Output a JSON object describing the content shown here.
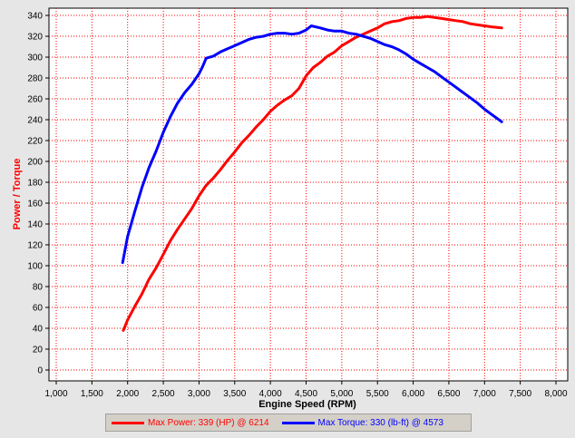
{
  "chart_data": {
    "type": "line",
    "xlabel": "Engine Speed (RPM)",
    "ylabel": "Power / Torque",
    "xlim": [
      1000,
      8000
    ],
    "ylim": [
      0,
      340
    ],
    "x_ticks": [
      1000,
      1500,
      2000,
      2500,
      3000,
      3500,
      4000,
      4500,
      5000,
      5500,
      6000,
      6500,
      7000,
      7500,
      8000
    ],
    "x_tick_labels": [
      "1,000",
      "1,500",
      "2,000",
      "2,500",
      "3,000",
      "3,500",
      "4,000",
      "4,500",
      "5,000",
      "5,500",
      "6,000",
      "6,500",
      "7,000",
      "7,500",
      "8,000"
    ],
    "y_ticks": [
      0,
      20,
      40,
      60,
      80,
      100,
      120,
      140,
      160,
      180,
      200,
      220,
      240,
      260,
      280,
      300,
      320,
      340
    ],
    "grid": true,
    "legend_position": "bottom",
    "series": [
      {
        "name": "Max Power: 339 (HP) @ 6214",
        "color": "#ff0000",
        "x": [
          1940,
          2000,
          2100,
          2200,
          2300,
          2400,
          2500,
          2600,
          2700,
          2800,
          2900,
          3000,
          3100,
          3200,
          3300,
          3400,
          3500,
          3600,
          3700,
          3800,
          3900,
          4000,
          4100,
          4200,
          4300,
          4400,
          4500,
          4600,
          4700,
          4800,
          4900,
          5000,
          5100,
          5200,
          5300,
          5400,
          5500,
          5600,
          5700,
          5800,
          5900,
          6000,
          6100,
          6200,
          6300,
          6400,
          6500,
          6600,
          6700,
          6800,
          6900,
          7000,
          7100,
          7240
        ],
        "y": [
          38,
          48,
          61,
          73,
          87,
          98,
          111,
          124,
          135,
          145,
          155,
          167,
          177,
          184,
          192,
          201,
          209,
          218,
          225,
          233,
          240,
          248,
          254,
          259,
          263,
          270,
          282,
          290,
          295,
          301,
          305,
          311,
          315,
          319,
          322,
          325,
          328,
          332,
          334,
          335,
          337,
          338,
          338,
          339,
          338,
          337,
          336,
          335,
          334,
          332,
          331,
          330,
          329,
          328
        ]
      },
      {
        "name": "Max Torque: 330 (lb-ft) @ 4573",
        "color": "#0000ff",
        "x": [
          1930,
          2000,
          2100,
          2200,
          2300,
          2400,
          2500,
          2600,
          2700,
          2800,
          2900,
          3000,
          3050,
          3100,
          3200,
          3300,
          3400,
          3500,
          3600,
          3700,
          3800,
          3900,
          4000,
          4100,
          4200,
          4300,
          4400,
          4500,
          4573,
          4700,
          4800,
          4900,
          5000,
          5100,
          5200,
          5300,
          5400,
          5500,
          5600,
          5700,
          5800,
          5900,
          6000,
          6100,
          6200,
          6300,
          6400,
          6500,
          6600,
          6700,
          6800,
          6900,
          7000,
          7100,
          7240
        ],
        "y": [
          103,
          128,
          152,
          175,
          194,
          210,
          228,
          243,
          256,
          266,
          274,
          284,
          291,
          299,
          301,
          305,
          308,
          311,
          314,
          317,
          319,
          320,
          322,
          323,
          323,
          322,
          323,
          326,
          330,
          328,
          326,
          325,
          325,
          323,
          322,
          320,
          318,
          315,
          312,
          310,
          307,
          303,
          298,
          294,
          290,
          286,
          281,
          276,
          271,
          266,
          261,
          256,
          250,
          245,
          238
        ]
      }
    ]
  }
}
